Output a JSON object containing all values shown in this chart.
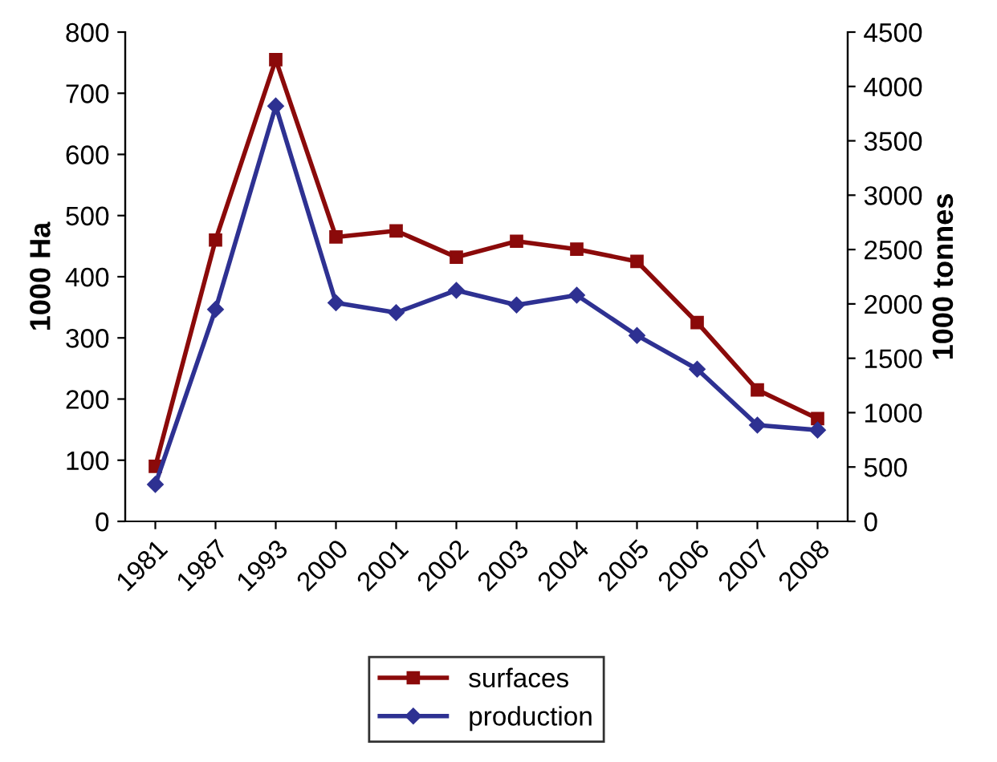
{
  "chart_data": {
    "type": "line",
    "ylabel": "1000 Ha",
    "y2label": "1000 tonnes",
    "categories": [
      "1981",
      "1987",
      "1993",
      "2000",
      "2001",
      "2002",
      "2003",
      "2004",
      "2005",
      "2006",
      "2007",
      "2008"
    ],
    "series": [
      {
        "name": "surfaces",
        "color": "#8b0a0a",
        "marker": "square",
        "values": [
          90,
          460,
          755,
          465,
          475,
          432,
          458,
          445,
          425,
          325,
          215,
          168
        ]
      },
      {
        "name": "production",
        "color": "#2e3192",
        "marker": "diamond",
        "axis": "y2",
        "values": [
          340,
          1950,
          3820,
          2010,
          1920,
          2125,
          1990,
          2080,
          1710,
          1400,
          885,
          840
        ]
      }
    ],
    "ylim": [
      0,
      800
    ],
    "yticks": [
      0,
      100,
      200,
      300,
      400,
      500,
      600,
      700,
      800
    ],
    "y2lim": [
      0,
      4500
    ],
    "y2ticks": [
      0,
      500,
      1000,
      1500,
      2000,
      2500,
      3000,
      3500,
      4000,
      4500
    ],
    "grid": false,
    "legend": "bottom",
    "line_style": "solid"
  }
}
